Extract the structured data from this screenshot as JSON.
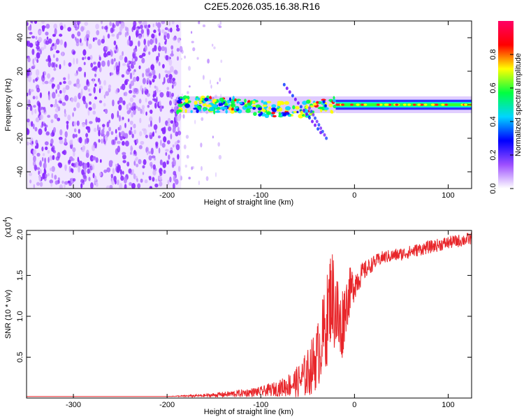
{
  "title": "C2E5.2026.035.16.38.R16",
  "chart_data": [
    {
      "type": "heatmap",
      "xlabel": "Height of straight line (km)",
      "ylabel": "Frequency (Hz)",
      "xlim": [
        -350,
        125
      ],
      "ylim": [
        -50,
        50
      ],
      "x_ticks": [
        -300,
        -200,
        -100,
        0,
        100
      ],
      "y_ticks": [
        -40,
        -20,
        0,
        20,
        40
      ],
      "colorbar": {
        "label": "Normalized spectral amplitude",
        "range": [
          0,
          1
        ],
        "ticks": [
          0.0,
          0.2,
          0.4,
          0.6,
          0.8
        ],
        "colors": [
          "#ffffff",
          "#9d4fff",
          "#0000ff",
          "#00d5ff",
          "#00ff40",
          "#ffff00",
          "#ff0000",
          "#ff0066"
        ]
      },
      "regions": [
        {
          "x": [
            -350,
            -185
          ],
          "freq": [
            -50,
            50
          ],
          "amplitude": 0.05,
          "description": "broadband noise"
        },
        {
          "x": [
            -185,
            -140
          ],
          "freq": [
            -50,
            50
          ],
          "amplitude": 0.02,
          "description": "sparse noise"
        },
        {
          "x": [
            -190,
            -20
          ],
          "freq": [
            -5,
            5
          ],
          "amplitude": 0.4,
          "description": "tracked signal band"
        },
        {
          "x": [
            -20,
            125
          ],
          "freq": [
            -3,
            3
          ],
          "amplitude": 0.7,
          "description": "narrow stable signal band"
        }
      ]
    },
    {
      "type": "line",
      "xlabel": "Height of straight line (km)",
      "ylabel": "SNR (10 * v/v)",
      "multiplier": "(x10",
      "multiplier_exp": "4",
      "xlim": [
        -350,
        125
      ],
      "ylim": [
        0,
        2.05
      ],
      "x_ticks": [
        -300,
        -200,
        -100,
        0,
        100
      ],
      "y_ticks": [
        0.5,
        1.0,
        1.5,
        2.0
      ],
      "series": [
        {
          "color": "#e8262a",
          "x": [
            -350,
            -300,
            -250,
            -200,
            -160,
            -130,
            -100,
            -80,
            -60,
            -50,
            -40,
            -30,
            -25,
            -20,
            -15,
            -10,
            -5,
            0,
            10,
            20,
            30,
            50,
            70,
            100,
            125
          ],
          "y": [
            0.02,
            0.02,
            0.02,
            0.02,
            0.03,
            0.05,
            0.08,
            0.12,
            0.2,
            0.3,
            0.5,
            0.9,
            1.3,
            1.1,
            0.8,
            1.1,
            1.3,
            1.4,
            1.55,
            1.65,
            1.72,
            1.76,
            1.82,
            1.9,
            1.95
          ],
          "jitter": [
            0.0,
            0.0,
            0.0,
            0.0,
            0.02,
            0.04,
            0.06,
            0.1,
            0.2,
            0.3,
            0.4,
            0.55,
            0.6,
            0.6,
            0.55,
            0.35,
            0.3,
            0.2,
            0.12,
            0.09,
            0.08,
            0.08,
            0.08,
            0.08,
            0.08
          ]
        }
      ]
    }
  ]
}
